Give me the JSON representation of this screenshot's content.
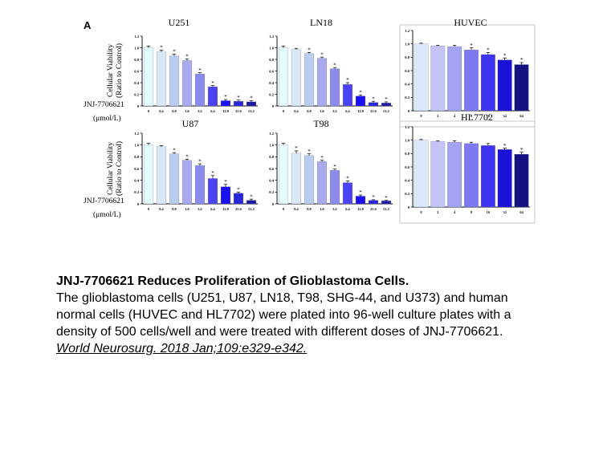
{
  "figure": {
    "panel_label": "A",
    "y_axis_label_line1": "Cellular Viability",
    "y_axis_label_line2": "(Ratio to Control)",
    "dose_label_line1": "JNJ-7706621",
    "dose_label_line2": "(μmol/L)"
  },
  "caption": {
    "title": "JNJ-7706621 Reduces Proliferation of Glioblastoma Cells.",
    "body_lines": [
      "The glioblastoma cells (U251, U87, LN18, T98, SHG-44, and U373) and human",
      "normal cells (HUVEC and HL7702) were plated into 96-well culture plates with a",
      "density of 500 cells/well and were treated with different doses of JNJ-7706621."
    ],
    "reference": "World Neurosurg. 2018 Jan;109:e329-e342."
  },
  "chart_data": [
    {
      "type": "bar",
      "title": "U251",
      "xlabel": "JNJ-7706621 (μmol/L)",
      "ylabel": "Cellular Viability (Ratio to Control)",
      "ylim": [
        0,
        1.2
      ],
      "yticks": [
        "0",
        "0.2",
        "0.4",
        "0.6",
        "0.8",
        "1.0",
        "1.2"
      ],
      "categories": [
        "0",
        "0.4",
        "0.8",
        "1.6",
        "3.2",
        "6.4",
        "12.8",
        "25.6",
        "51.2"
      ],
      "values": [
        1.0,
        0.93,
        0.86,
        0.78,
        0.55,
        0.33,
        0.09,
        0.08,
        0.07
      ],
      "errors": [
        0.03,
        0.03,
        0.03,
        0.03,
        0.02,
        0.02,
        0.02,
        0.02,
        0.02
      ],
      "significance": [
        "",
        "*",
        "*",
        "*",
        "*",
        "*",
        "*",
        "*",
        "*"
      ],
      "colors": [
        "#e3fbfb",
        "#d9e7f7",
        "#b9cdf0",
        "#a9a9ee",
        "#8d8aee",
        "#4b42f1",
        "#1a10f2",
        "#2a24da",
        "#1d1aa4"
      ],
      "grid": false,
      "legend": "none"
    },
    {
      "type": "bar",
      "title": "LN18",
      "xlabel": "JNJ-7706621 (μmol/L)",
      "ylabel": "Cellular Viability (Ratio to Control)",
      "ylim": [
        0,
        1.2
      ],
      "yticks": [
        "0",
        "0.2",
        "0.4",
        "0.6",
        "0.8",
        "1.0",
        "1.2"
      ],
      "categories": [
        "0",
        "0.4",
        "0.8",
        "1.6",
        "3.2",
        "6.4",
        "12.8",
        "25.6",
        "51.2"
      ],
      "values": [
        1.0,
        0.97,
        0.9,
        0.82,
        0.64,
        0.37,
        0.17,
        0.06,
        0.05
      ],
      "errors": [
        0.03,
        0.02,
        0.02,
        0.02,
        0.02,
        0.03,
        0.02,
        0.02,
        0.02
      ],
      "significance": [
        "",
        "",
        "*",
        "*",
        "*",
        "*",
        "*",
        "*",
        "*"
      ],
      "colors": [
        "#e3fbfb",
        "#d9e7f7",
        "#b9cdf0",
        "#a9a9ee",
        "#8d8aee",
        "#4b42f1",
        "#1a10f2",
        "#2a24da",
        "#1d1aa4"
      ],
      "grid": false,
      "legend": "none"
    },
    {
      "type": "bar",
      "title": "HUVEC",
      "xlabel": "JNJ-7706621 (μmol/L)",
      "ylabel": "Cellular Viability (Ratio to Control)",
      "ylim": [
        0,
        1.2
      ],
      "yticks": [
        "0",
        "0.2",
        "0.4",
        "0.6",
        "0.8",
        "1.0",
        "1.2"
      ],
      "categories": [
        "0",
        "2",
        "4",
        "8",
        "16",
        "32",
        "64"
      ],
      "values": [
        1.0,
        0.97,
        0.96,
        0.91,
        0.84,
        0.76,
        0.69
      ],
      "errors": [
        0.01,
        0.01,
        0.02,
        0.03,
        0.03,
        0.03,
        0.03
      ],
      "significance": [
        "",
        "",
        "",
        "*",
        "*",
        "*",
        "*"
      ],
      "colors": [
        "#dce8f8",
        "#c3c3f5",
        "#a4a2f3",
        "#7f78f1",
        "#3f33f0",
        "#1a12d6",
        "#141280"
      ],
      "grid": false,
      "legend": "none"
    },
    {
      "type": "bar",
      "title": "U87",
      "xlabel": "JNJ-7706621 (μmol/L)",
      "ylabel": "Cellular Viability (Ratio to Control)",
      "ylim": [
        0,
        1.2
      ],
      "yticks": [
        "0",
        "0.2",
        "0.4",
        "0.6",
        "0.8",
        "1.0",
        "1.2"
      ],
      "categories": [
        "0",
        "0.4",
        "0.8",
        "1.6",
        "3.2",
        "6.4",
        "12.8",
        "25.6",
        "51.2"
      ],
      "values": [
        1.0,
        0.97,
        0.85,
        0.74,
        0.65,
        0.43,
        0.29,
        0.18,
        0.06
      ],
      "errors": [
        0.03,
        0.02,
        0.02,
        0.02,
        0.03,
        0.05,
        0.04,
        0.02,
        0.02
      ],
      "significance": [
        "",
        "",
        "*",
        "*",
        "*",
        "*",
        "*",
        "*",
        "*"
      ],
      "colors": [
        "#e3fbfb",
        "#d9e7f7",
        "#b9cdf0",
        "#a9a9ee",
        "#8d8aee",
        "#4b42f1",
        "#1a10f2",
        "#2a24da",
        "#1d1aa4"
      ],
      "grid": false,
      "legend": "none"
    },
    {
      "type": "bar",
      "title": "T98",
      "xlabel": "JNJ-7706621 (μmol/L)",
      "ylabel": "Cellular Viability (Ratio to Control)",
      "ylim": [
        0,
        1.2
      ],
      "yticks": [
        "0",
        "0.2",
        "0.4",
        "0.6",
        "0.8",
        "1.0",
        "1.2"
      ],
      "categories": [
        "0",
        "0.4",
        "0.8",
        "1.6",
        "3.2",
        "6.4",
        "12.8",
        "25.6",
        "51.2"
      ],
      "values": [
        1.0,
        0.86,
        0.82,
        0.72,
        0.57,
        0.36,
        0.13,
        0.06,
        0.05
      ],
      "errors": [
        0.03,
        0.04,
        0.03,
        0.02,
        0.02,
        0.03,
        0.02,
        0.01,
        0.01
      ],
      "significance": [
        "",
        "*",
        "*",
        "*",
        "*",
        "*",
        "*",
        "*",
        "*"
      ],
      "colors": [
        "#e3fbfb",
        "#d9e7f7",
        "#b9cdf0",
        "#a9a9ee",
        "#8d8aee",
        "#4b42f1",
        "#1a10f2",
        "#2a24da",
        "#1d1aa4"
      ],
      "grid": false,
      "legend": "none"
    },
    {
      "type": "bar",
      "title": "HL7702",
      "xlabel": "JNJ-7706621 (μmol/L)",
      "ylabel": "Cellular Viability (Ratio to Control)",
      "ylim": [
        0,
        1.2
      ],
      "yticks": [
        "0",
        "0.2",
        "0.4",
        "0.6",
        "0.8",
        "1.0",
        "1.2"
      ],
      "categories": [
        "0",
        "2",
        "4",
        "8",
        "16",
        "32",
        "64"
      ],
      "values": [
        1.0,
        0.98,
        0.97,
        0.95,
        0.92,
        0.86,
        0.79
      ],
      "errors": [
        0.01,
        0.01,
        0.02,
        0.02,
        0.03,
        0.02,
        0.03
      ],
      "significance": [
        "",
        "",
        "",
        "",
        "",
        "*",
        "*"
      ],
      "colors": [
        "#dce8f8",
        "#c3c3f5",
        "#a4a2f3",
        "#7f78f1",
        "#3f33f0",
        "#1a12d6",
        "#141280"
      ],
      "grid": false,
      "legend": "none"
    }
  ]
}
